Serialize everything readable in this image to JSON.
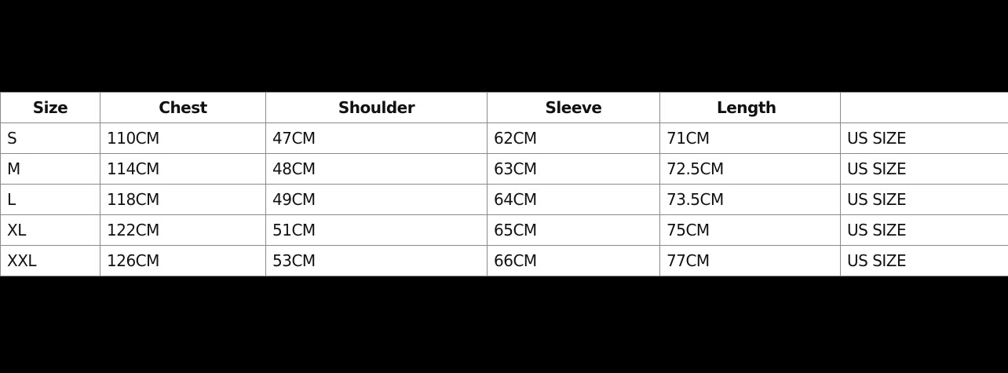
{
  "table": {
    "headers": [
      "Size",
      "Chest",
      "Shoulder",
      "Sleeve",
      "Length",
      ""
    ],
    "rows": [
      [
        "S",
        "110CM",
        "47CM",
        "62CM",
        "71CM",
        "US SIZE"
      ],
      [
        "M",
        "114CM",
        "48CM",
        "63CM",
        "72.5CM",
        "US SIZE"
      ],
      [
        "L",
        "118CM",
        "49CM",
        "64CM",
        "73.5CM",
        "US SIZE"
      ],
      [
        "XL",
        "122CM",
        "51CM",
        "65CM",
        "75CM",
        "US SIZE"
      ],
      [
        "XXL",
        "126CM",
        "53CM",
        "66CM",
        "77CM",
        "US SIZE"
      ]
    ]
  }
}
